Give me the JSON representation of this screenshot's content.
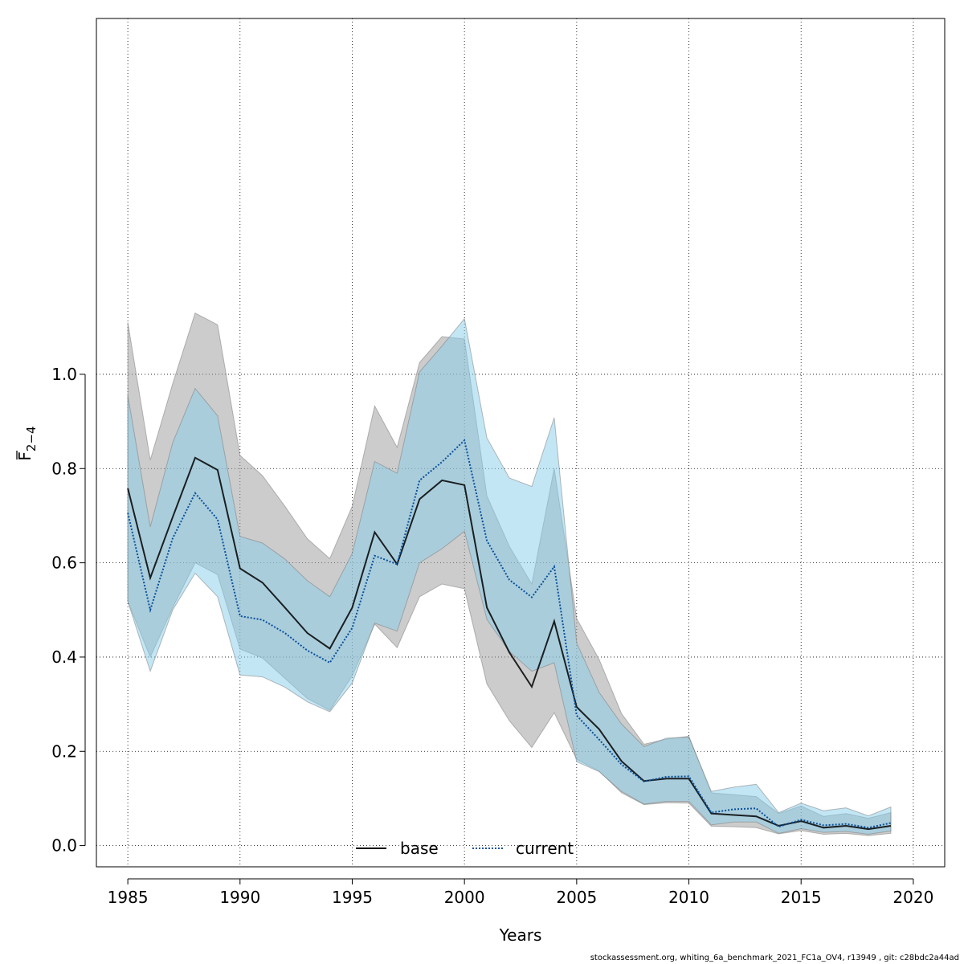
{
  "chart_data": {
    "type": "line",
    "xlabel": "Years",
    "ylabel_main": "F",
    "ylabel_sub": "2−4",
    "xlim": [
      1983.6,
      2021.4
    ],
    "ylim": [
      -0.045,
      1.755
    ],
    "x_ticks": [
      1985,
      1990,
      1995,
      2000,
      2005,
      2010,
      2015,
      2020
    ],
    "y_ticks": [
      0.0,
      0.2,
      0.4,
      0.6,
      0.8,
      1.0
    ],
    "y_tick_labels": [
      "0.0",
      "0.2",
      "0.4",
      "0.6",
      "0.8",
      "1.0"
    ],
    "grid": true,
    "legend_placement": "bottom-center",
    "x": [
      1985,
      1986,
      1987,
      1988,
      1989,
      1990,
      1991,
      1992,
      1993,
      1994,
      1995,
      1996,
      1997,
      1998,
      1999,
      2000,
      2001,
      2002,
      2003,
      2004,
      2005,
      2006,
      2007,
      2008,
      2009,
      2010,
      2011,
      2012,
      2013,
      2014,
      2015,
      2016,
      2017,
      2018,
      2019
    ],
    "series": [
      {
        "name": "base",
        "color": "#000000",
        "band_color": "#999999",
        "line_style": "solid",
        "values": [
          0.758,
          0.568,
          0.697,
          0.823,
          0.797,
          0.588,
          0.558,
          0.505,
          0.451,
          0.418,
          0.505,
          0.665,
          0.597,
          0.735,
          0.775,
          0.765,
          0.505,
          0.41,
          0.337,
          0.476,
          0.294,
          0.247,
          0.179,
          0.137,
          0.142,
          0.142,
          0.068,
          0.065,
          0.062,
          0.042,
          0.052,
          0.038,
          0.042,
          0.035,
          0.042
        ],
        "lower": [
          0.518,
          0.4,
          0.505,
          0.6,
          0.575,
          0.417,
          0.398,
          0.355,
          0.312,
          0.287,
          0.36,
          0.47,
          0.42,
          0.528,
          0.555,
          0.545,
          0.343,
          0.265,
          0.208,
          0.282,
          0.183,
          0.158,
          0.112,
          0.087,
          0.091,
          0.09,
          0.041,
          0.04,
          0.038,
          0.025,
          0.032,
          0.024,
          0.026,
          0.021,
          0.026
        ],
        "upper": [
          1.11,
          0.818,
          0.98,
          1.13,
          1.105,
          0.828,
          0.785,
          0.72,
          0.651,
          0.609,
          0.72,
          0.933,
          0.845,
          1.025,
          1.08,
          1.075,
          0.742,
          0.635,
          0.555,
          0.8,
          0.482,
          0.395,
          0.28,
          0.215,
          0.226,
          0.232,
          0.112,
          0.108,
          0.104,
          0.068,
          0.084,
          0.062,
          0.068,
          0.058,
          0.07
        ]
      },
      {
        "name": "current",
        "color": "#08519c",
        "band_color": "#87ceeb",
        "line_style": "dotted",
        "values": [
          0.706,
          0.5,
          0.652,
          0.748,
          0.692,
          0.487,
          0.479,
          0.451,
          0.414,
          0.388,
          0.462,
          0.615,
          0.597,
          0.775,
          0.814,
          0.86,
          0.647,
          0.564,
          0.527,
          0.592,
          0.276,
          0.225,
          0.172,
          0.136,
          0.146,
          0.147,
          0.07,
          0.077,
          0.079,
          0.04,
          0.055,
          0.043,
          0.046,
          0.038,
          0.048
        ],
        "lower": [
          0.518,
          0.37,
          0.5,
          0.578,
          0.528,
          0.362,
          0.358,
          0.336,
          0.305,
          0.284,
          0.345,
          0.472,
          0.455,
          0.6,
          0.63,
          0.667,
          0.48,
          0.412,
          0.37,
          0.388,
          0.178,
          0.157,
          0.115,
          0.088,
          0.094,
          0.094,
          0.044,
          0.05,
          0.05,
          0.026,
          0.036,
          0.028,
          0.03,
          0.024,
          0.031
        ],
        "upper": [
          0.955,
          0.676,
          0.855,
          0.97,
          0.912,
          0.656,
          0.642,
          0.608,
          0.562,
          0.528,
          0.62,
          0.815,
          0.79,
          1.005,
          1.06,
          1.118,
          0.865,
          0.78,
          0.762,
          0.908,
          0.43,
          0.325,
          0.258,
          0.21,
          0.228,
          0.23,
          0.115,
          0.124,
          0.13,
          0.07,
          0.09,
          0.074,
          0.08,
          0.063,
          0.082
        ]
      }
    ]
  },
  "footer": "stockassessment.org, whiting_6a_benchmark_2021_FC1a_OV4, r13949 , git: c28bdc2a44ad"
}
